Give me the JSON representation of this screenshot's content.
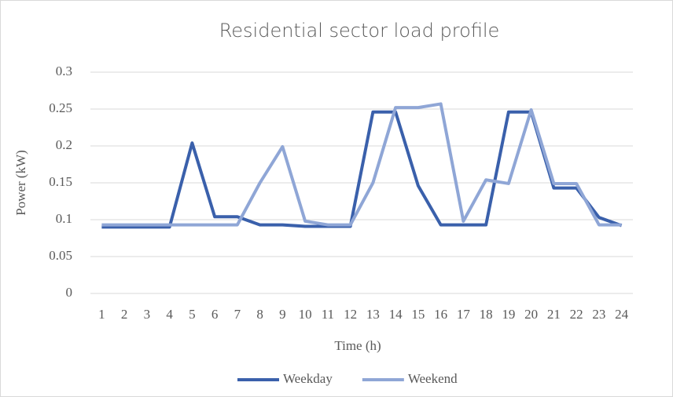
{
  "chart_data": {
    "type": "line",
    "title": "Residential sector load profile",
    "x_label": "Time (h)",
    "y_label": "Power (kW)",
    "categories": [
      "1",
      "2",
      "3",
      "4",
      "5",
      "6",
      "7",
      "8",
      "9",
      "10",
      "11",
      "12",
      "13",
      "14",
      "15",
      "16",
      "17",
      "18",
      "19",
      "20",
      "21",
      "22",
      "23",
      "24"
    ],
    "series": [
      {
        "name": "Weekday",
        "color": "#3a60ab",
        "values": [
          0.09,
          0.09,
          0.09,
          0.09,
          0.204,
          0.104,
          0.104,
          0.093,
          0.093,
          0.091,
          0.091,
          0.091,
          0.246,
          0.246,
          0.146,
          0.093,
          0.093,
          0.093,
          0.246,
          0.246,
          0.143,
          0.143,
          0.103,
          0.092
        ]
      },
      {
        "name": "Weekend",
        "color": "#8fa6d6",
        "values": [
          0.093,
          0.093,
          0.093,
          0.093,
          0.093,
          0.093,
          0.093,
          0.15,
          0.199,
          0.098,
          0.093,
          0.093,
          0.15,
          0.252,
          0.252,
          0.257,
          0.098,
          0.154,
          0.149,
          0.249,
          0.149,
          0.149,
          0.093,
          0.093
        ]
      }
    ],
    "ylim": [
      0,
      0.3
    ],
    "yticks": [
      0,
      0.05,
      0.1,
      0.15,
      0.2,
      0.25,
      0.3
    ],
    "grid": true,
    "legend": "bottom"
  }
}
